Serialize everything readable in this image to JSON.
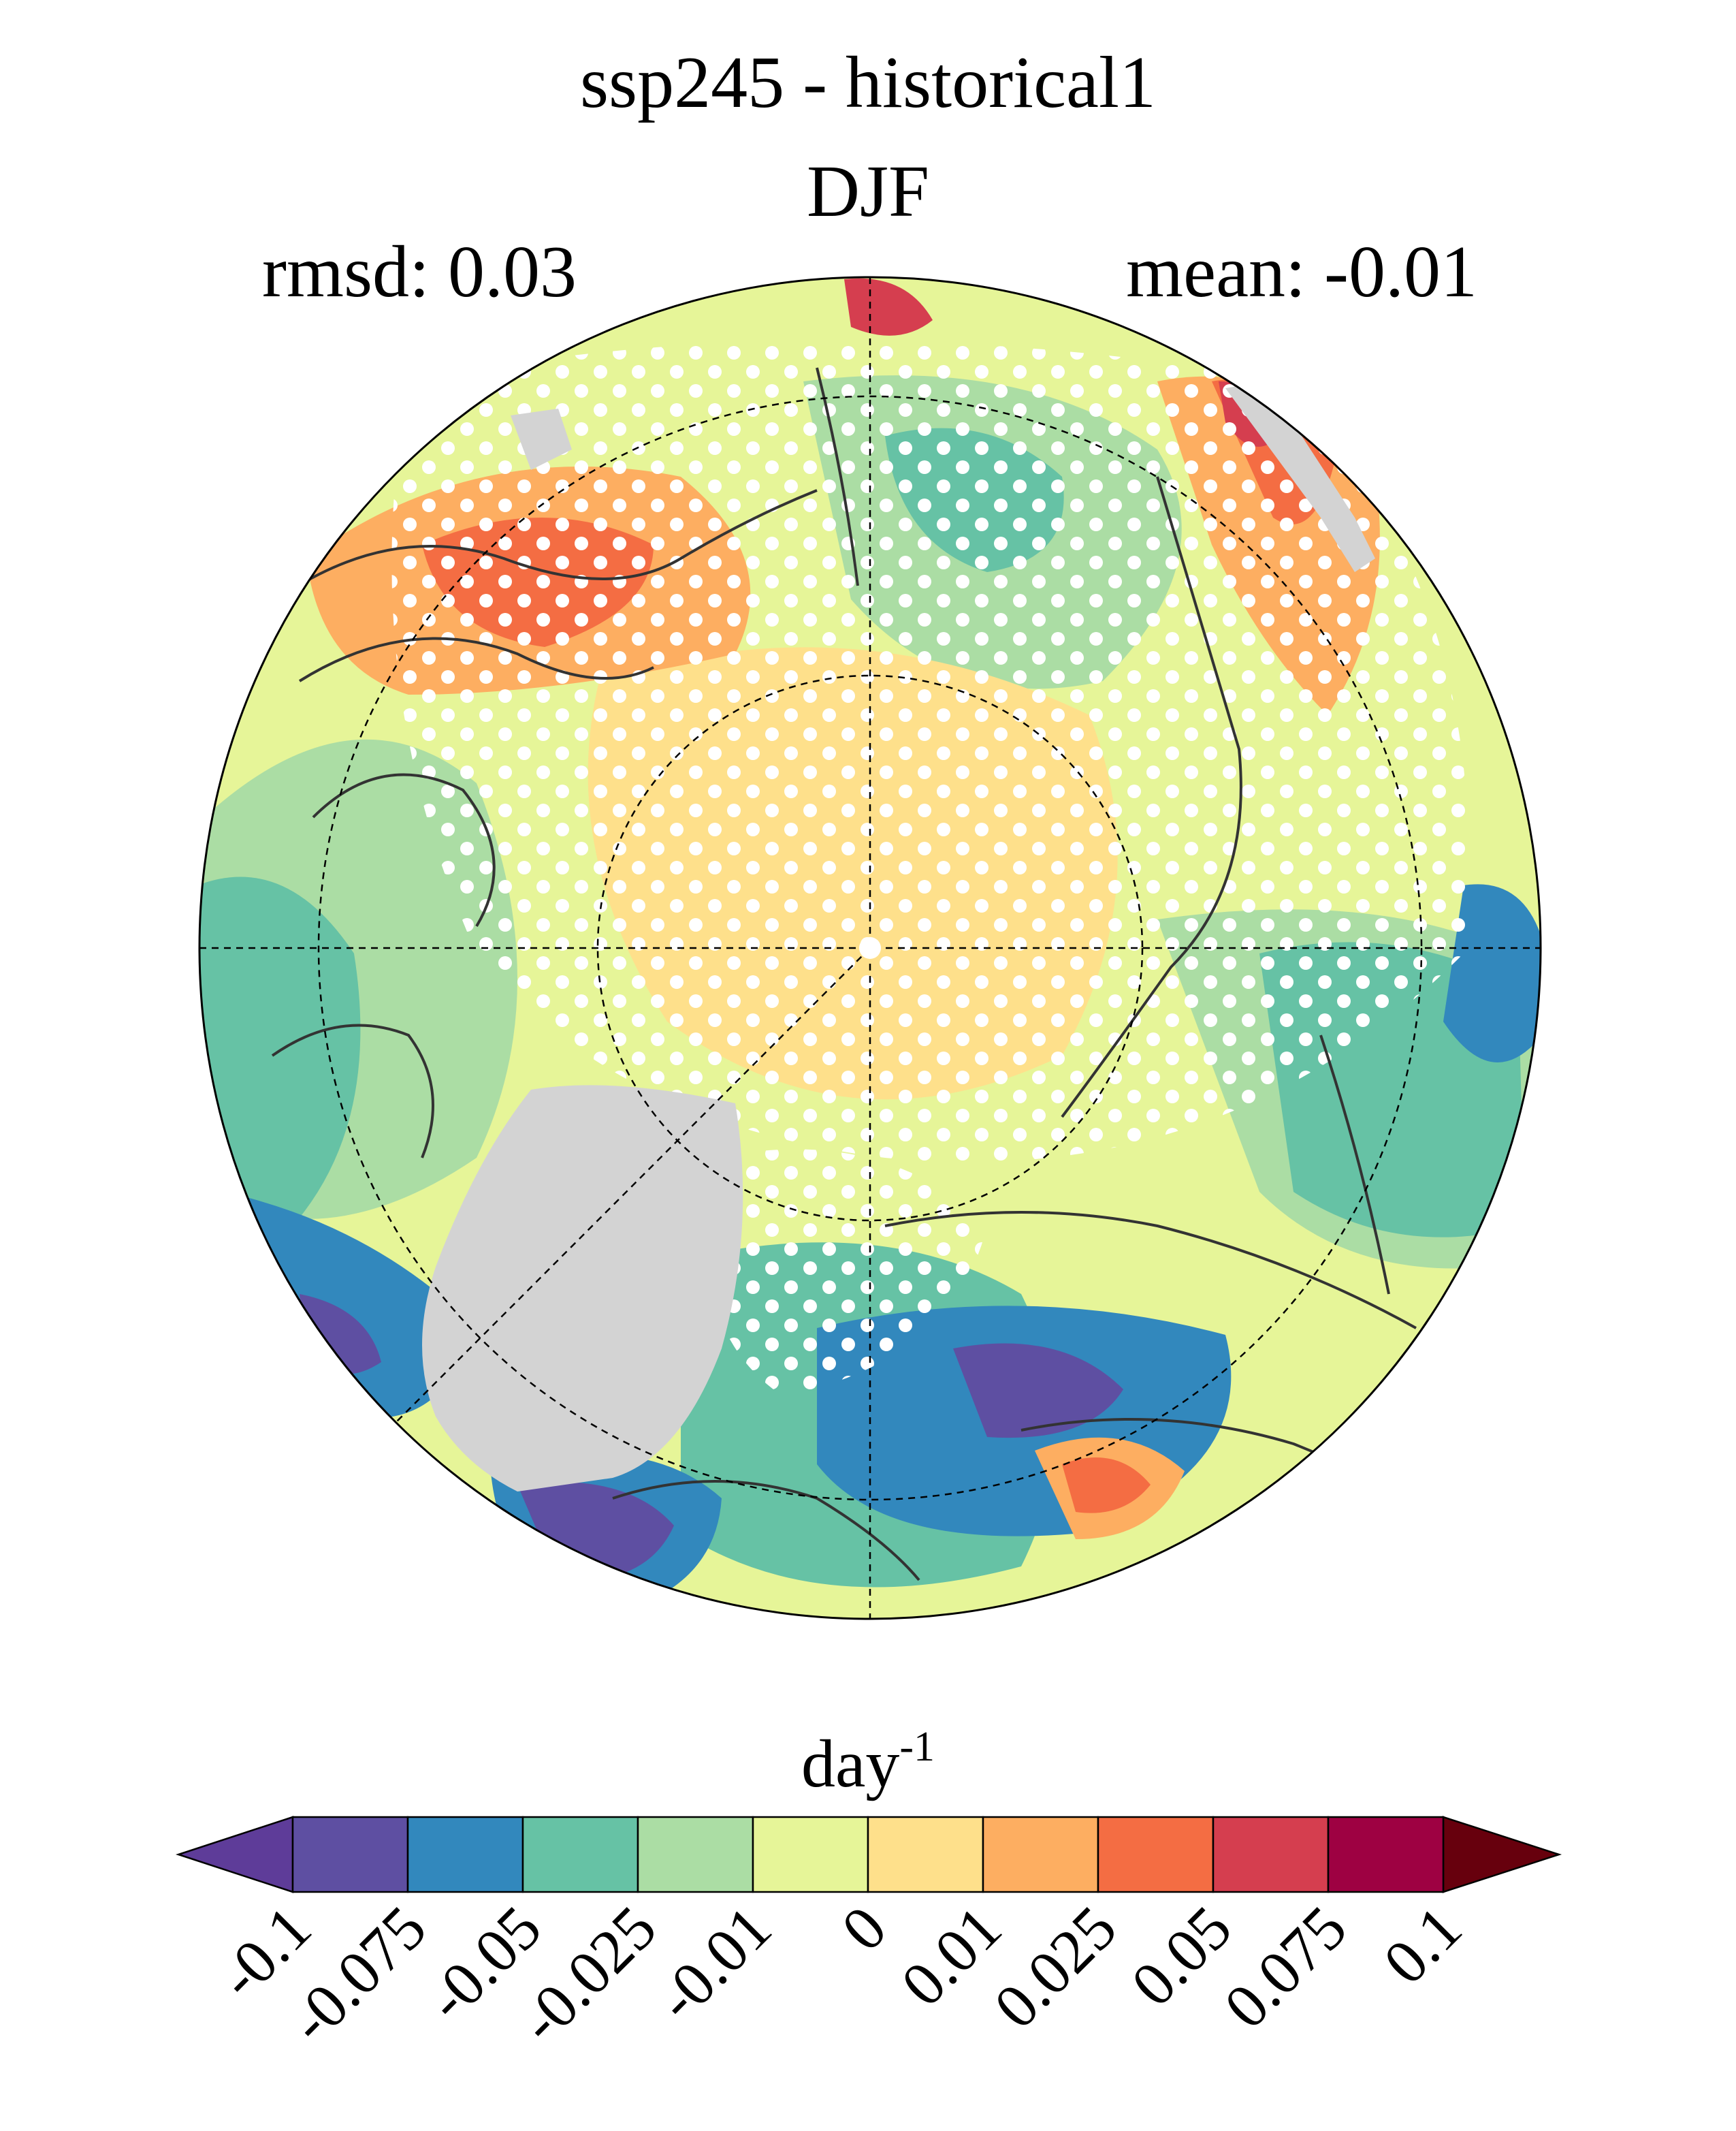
{
  "title": "ssp245 - historical1",
  "season": "DJF",
  "stats": {
    "rmsd_label": "rmsd: 0.03",
    "mean_label": "mean: -0.01"
  },
  "colorbar": {
    "unit_base": "day",
    "unit_exp": "-1",
    "ticks": [
      "-0.1",
      "-0.075",
      "-0.05",
      "-0.025",
      "-0.01",
      "0",
      "0.01",
      "0.025",
      "0.05",
      "0.075",
      "0.1"
    ],
    "colors": [
      "#5e4fa2",
      "#3288bd",
      "#66c2a5",
      "#abdda4",
      "#e6f598",
      "#fee08b",
      "#fdae61",
      "#f46d43",
      "#d53e4f",
      "#9e0142"
    ],
    "extend_low_color": "#5e3c99",
    "extend_high_color": "#67000d"
  },
  "map": {
    "projection": "north-polar-stereographic",
    "land_mask_color": "#d3d3d3",
    "stipple_color": "#ffffff"
  }
}
